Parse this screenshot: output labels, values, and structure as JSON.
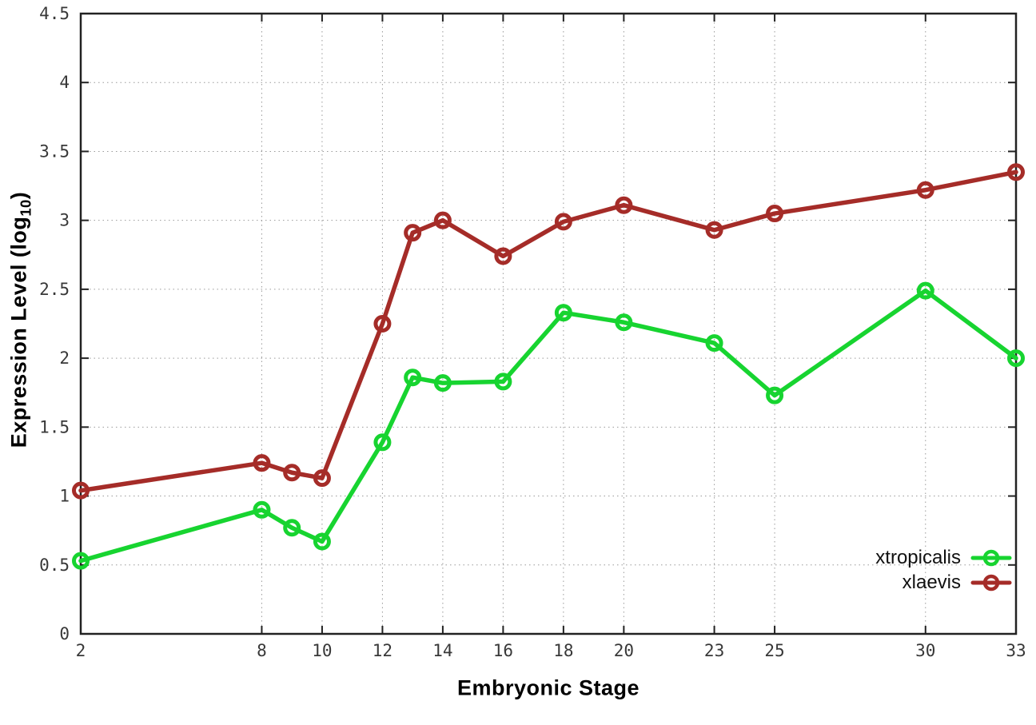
{
  "chart_data": {
    "type": "line",
    "title": "",
    "xlabel": "Embryonic Stage",
    "ylabel": "Expression Level (log10)",
    "ylabel_parts": {
      "main": "Expression Level (log",
      "sub": "10",
      "close": ")"
    },
    "xlim": [
      2,
      33
    ],
    "ylim": [
      0,
      4.5
    ],
    "x_ticks": [
      2,
      8,
      10,
      12,
      14,
      16,
      18,
      20,
      23,
      25,
      30,
      33
    ],
    "y_ticks": [
      0,
      0.5,
      1,
      1.5,
      2,
      2.5,
      3,
      3.5,
      4,
      4.5
    ],
    "y_tick_labels": [
      "0",
      "0.5",
      "1",
      "1.5",
      "2",
      "2.5",
      "3",
      "3.5",
      "4",
      "4.5"
    ],
    "grid": true,
    "grid_style": "dotted",
    "legend_position": "inside-bottom-right",
    "marker": "open-circle",
    "x": [
      2,
      8,
      9,
      10,
      12,
      13,
      14,
      16,
      18,
      20,
      23,
      25,
      30,
      33
    ],
    "series": [
      {
        "name": "xtropicalis",
        "color": "#17d430",
        "values": [
          0.53,
          0.9,
          0.77,
          0.67,
          1.39,
          1.86,
          1.82,
          1.83,
          2.33,
          2.26,
          2.11,
          1.73,
          2.49,
          2.0
        ]
      },
      {
        "name": "xlaevis",
        "color": "#a52c28",
        "values": [
          1.04,
          1.24,
          1.17,
          1.13,
          2.25,
          2.91,
          3.0,
          2.74,
          2.99,
          3.11,
          2.93,
          3.05,
          3.22,
          3.35
        ]
      }
    ]
  }
}
